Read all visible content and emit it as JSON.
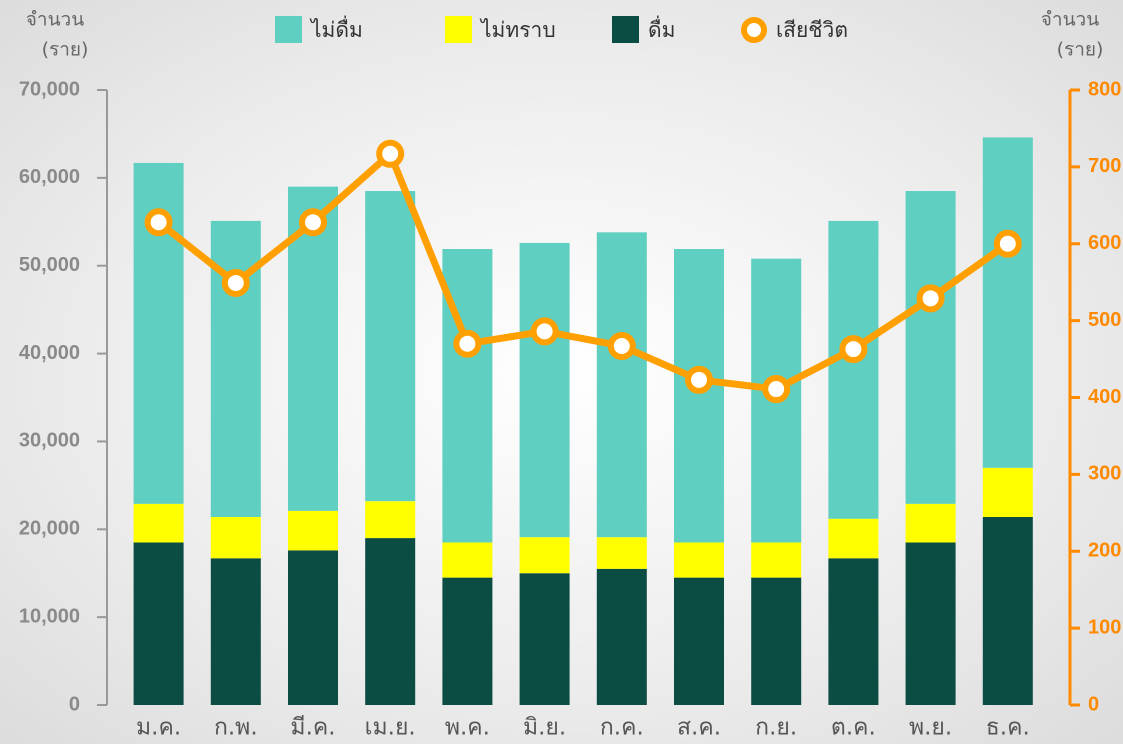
{
  "chart_data": {
    "type": "bar",
    "stacked": true,
    "y_label": [
      "จำนวน",
      "(ราย)"
    ],
    "y2_label": [
      "จำนวน",
      "(ราย)"
    ],
    "categories": [
      "ม.ค.",
      "ก.พ.",
      "มี.ค.",
      "เม.ย.",
      "พ.ค.",
      "มิ.ย.",
      "ก.ค.",
      "ส.ค.",
      "ก.ย.",
      "ต.ค.",
      "พ.ย.",
      "ธ.ค."
    ],
    "series": [
      {
        "name": "ดื่ม",
        "color": "#0b4d43",
        "values": [
          18500,
          16700,
          17600,
          19000,
          14500,
          15000,
          15500,
          14500,
          14500,
          16700,
          18500,
          21400
        ]
      },
      {
        "name": "ไม่ทราบ",
        "color": "#ffff00",
        "values": [
          4400,
          4700,
          4500,
          4200,
          4000,
          4100,
          3600,
          4000,
          4000,
          4500,
          4400,
          5600
        ]
      },
      {
        "name": "ไม่ดื่ม",
        "color": "#5ecfc1",
        "values": [
          38800,
          33700,
          36900,
          35300,
          33400,
          33500,
          34700,
          33400,
          32300,
          33900,
          35600,
          37600
        ]
      },
      {
        "name": "เสียชีวิต",
        "color": "#ff9f00",
        "type": "line",
        "axis": "y2",
        "values": [
          628,
          549,
          628,
          717,
          470,
          486,
          467,
          423,
          411,
          463,
          529,
          600
        ]
      }
    ],
    "legend_order": [
      2,
      1,
      0,
      3
    ],
    "ylim": [
      0,
      70000
    ],
    "yticks": [
      0,
      {
        "value": 10000,
        "label": "10,000"
      },
      {
        "value": 20000,
        "label": "20,000"
      },
      {
        "value": 30000,
        "label": "30,000"
      },
      {
        "value": 40000,
        "label": "40,000"
      },
      {
        "value": 50000,
        "label": "50,000"
      },
      {
        "value": 60000,
        "label": "60,000"
      },
      {
        "value": 70000,
        "label": "70,000"
      }
    ],
    "y2lim": [
      0,
      800
    ],
    "y2ticks": [
      0,
      100,
      200,
      300,
      400,
      500,
      600,
      700,
      800
    ],
    "y2_color": "#ff8a00"
  }
}
